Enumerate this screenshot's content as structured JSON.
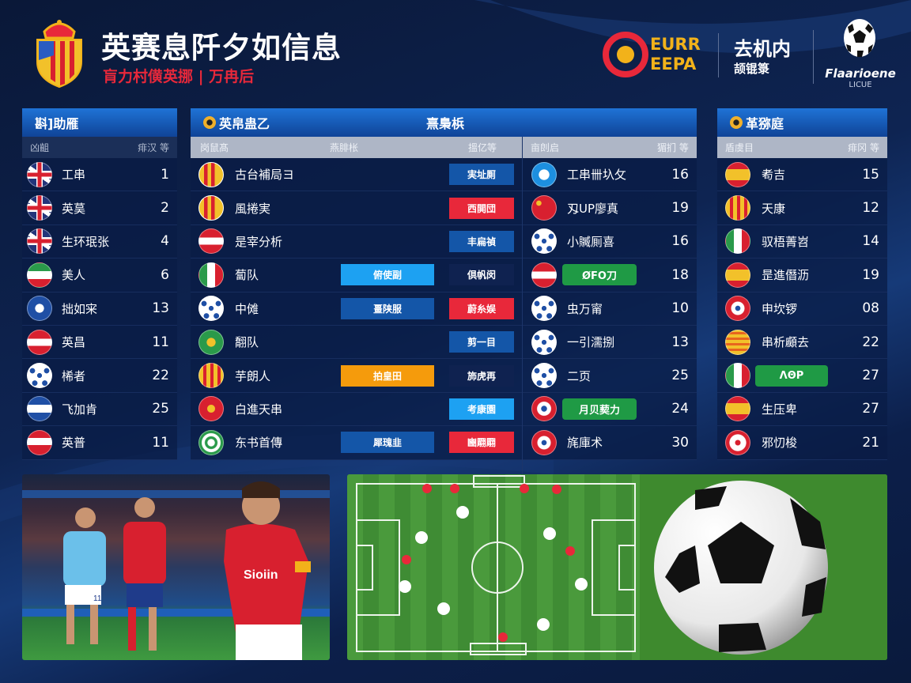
{
  "header": {
    "title": "英赛息阡夕如信息",
    "subtitle": "肓力村僙英挪 | 万冉后",
    "euro_logo": {
      "line1": "EURR",
      "line2": "EEPA"
    },
    "center": {
      "title": "去机内",
      "subtitle": "颉锟箓"
    },
    "ucl_logo": {
      "name": "Flaarioene",
      "sub": "LICUE"
    }
  },
  "colors": {
    "red": "#e8283a",
    "blue_dark": "#1456a8",
    "blue_light": "#1da1f2",
    "orange": "#f59b0c",
    "green": "#1f9a45",
    "gold": "#f2b21a"
  },
  "left_panel": {
    "title": "斟]助雁",
    "col_left": "凶齟",
    "col_right": "痱汉 等",
    "rows": [
      {
        "icon": "f-uk",
        "name": "工串",
        "value": "1"
      },
      {
        "icon": "f-uk",
        "name": "英茣",
        "value": "2"
      },
      {
        "icon": "f-uk",
        "name": "生环珉张",
        "value": "4"
      },
      {
        "icon": "f-iran",
        "name": "美人",
        "value": "6"
      },
      {
        "icon": "f-bluecrest",
        "name": "拙如宩",
        "value": "13"
      },
      {
        "icon": "f-rwr",
        "name": "英昌",
        "value": "11"
      },
      {
        "icon": "f-ball",
        "name": "桸者",
        "value": "22"
      },
      {
        "icon": "f-bwb",
        "name": "飞加肯",
        "value": "25"
      },
      {
        "icon": "f-redband",
        "name": "英普",
        "value": "11"
      }
    ]
  },
  "middle_panel": {
    "title": "英帛蛊乙",
    "title_right": "熹梟梹",
    "col_a": "岗鼠髙",
    "col_b": "燕腓枨",
    "col_c": "搵亿等",
    "col_d": "亩剆启",
    "col_e": "猸扪 等",
    "rows": [
      {
        "icon": "f-crest",
        "name": "古台補局ヨ",
        "mid": null,
        "mid_color": null,
        "tag": "実址厠",
        "tag_color": "#1456a8",
        "icon2": "f-bluegear",
        "name2": "工串卌圦攵",
        "pill2": null,
        "value": "16"
      },
      {
        "icon": "f-crest",
        "name": "風捲実",
        "mid": null,
        "mid_color": null,
        "tag": "西閧団",
        "tag_color": "#e8283a",
        "icon2": "f-china",
        "name2": "刄UP廖真",
        "pill2": null,
        "value": "19"
      },
      {
        "icon": "f-rwr",
        "name": "是宰分析",
        "mid": null,
        "mid_color": null,
        "tag": "丰扁禎",
        "tag_color": "#1456a8",
        "icon2": "f-ball",
        "name2": "小贓厠喜",
        "pill2": null,
        "value": "16"
      },
      {
        "icon": "f-italy",
        "name": "蔔队",
        "mid": "俯使副",
        "mid_color": "#1da1f2",
        "tag": "倶帆闵",
        "tag_color": "#0f2250",
        "icon2": "f-rwr",
        "name2": "",
        "pill2": "ØFO刀",
        "value": "18"
      },
      {
        "icon": "f-ball",
        "name": "中傩",
        "mid": "畺陕服",
        "mid_color": "#1456a8",
        "tag": "蔚糸娱",
        "tag_color": "#e8283a",
        "icon2": "f-ball",
        "name2": "虫万甯",
        "pill2": null,
        "value": "10"
      },
      {
        "icon": "f-green",
        "name": "䎗队",
        "mid": null,
        "mid_color": null,
        "tag": "剪一目",
        "tag_color": "#1456a8",
        "icon2": "f-ball",
        "name2": "一引濡捌",
        "pill2": null,
        "value": "13"
      },
      {
        "icon": "f-catalan",
        "name": "芋朗人",
        "mid": "拍皇田",
        "mid_color": "#f59b0c",
        "tag": "斾虎再",
        "tag_color": "#0f2250",
        "icon2": "f-ball",
        "name2": "二页",
        "pill2": null,
        "value": "25"
      },
      {
        "icon": "f-vietnam",
        "name": "白進天串",
        "mid": null,
        "mid_color": null,
        "tag": "考康園",
        "tag_color": "#1da1f2",
        "icon2": "f-anchor",
        "name2": "",
        "pill2": "月贝葜力",
        "value": "24"
      },
      {
        "icon": "f-greenring",
        "name": "东书首傳",
        "mid": "犀瑰韭",
        "mid_color": "#1456a8",
        "tag": "豳翢翢",
        "tag_color": "#e8283a",
        "icon2": "f-redcross",
        "name2": "旄庫术",
        "pill2": null,
        "value": "30"
      }
    ]
  },
  "right_panel": {
    "title": "革猕庭",
    "col_left": "盾虞目",
    "col_right": "痱冈 等",
    "rows": [
      {
        "icon": "f-spain",
        "name": "耇吉",
        "pill": null,
        "value": "15"
      },
      {
        "icon": "f-catalan",
        "name": "天康",
        "pill": null,
        "value": "12"
      },
      {
        "icon": "f-mexico",
        "name": "驭梧菁岧",
        "pill": null,
        "value": "14"
      },
      {
        "icon": "f-spain",
        "name": "昰進僭沥",
        "pill": null,
        "value": "19"
      },
      {
        "icon": "f-redcross",
        "name": "申坎锣",
        "pill": null,
        "value": "08"
      },
      {
        "icon": "f-catalanh",
        "name": "串析顣去",
        "pill": null,
        "value": "22"
      },
      {
        "icon": "f-mexico",
        "name": "",
        "pill": "ΛΘP",
        "value": "27"
      },
      {
        "icon": "f-spain",
        "name": "生压卑",
        "pill": null,
        "value": "27"
      },
      {
        "icon": "f-redwhite",
        "name": "邪忉梭",
        "pill": null,
        "value": "21"
      }
    ]
  },
  "photo": {
    "shirt_text": "Sioiin",
    "shirt_number": "11"
  }
}
